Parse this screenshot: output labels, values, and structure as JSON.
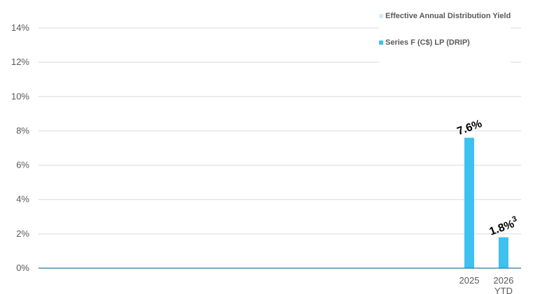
{
  "chart_data": {
    "type": "bar",
    "categories": [
      "2025",
      "2026 YTD"
    ],
    "category_label_lines": [
      [
        "2025"
      ],
      [
        "2026",
        "YTD"
      ]
    ],
    "series": [
      {
        "name": "Series F (C$) LP (DRIP)",
        "values": [
          7.6,
          1.8
        ],
        "data_labels": [
          "7.6%",
          "1.8%"
        ],
        "data_label_superscripts": [
          "",
          "3"
        ],
        "color": "#3ec1f0"
      }
    ],
    "legend": [
      {
        "label": "Effective Annual Distribution Yield",
        "color": "#d6ecf8"
      },
      {
        "label": "Series F (C$) LP (DRIP)",
        "color": "#3ec1f0"
      }
    ],
    "legend_position": "top-right",
    "y_ticks": [
      "0%",
      "2%",
      "4%",
      "6%",
      "8%",
      "10%",
      "12%",
      "14%"
    ],
    "ylim": [
      0,
      14
    ],
    "grid": true,
    "axis_color": "#1f7fa5",
    "grid_color": "#d9d9d9"
  }
}
